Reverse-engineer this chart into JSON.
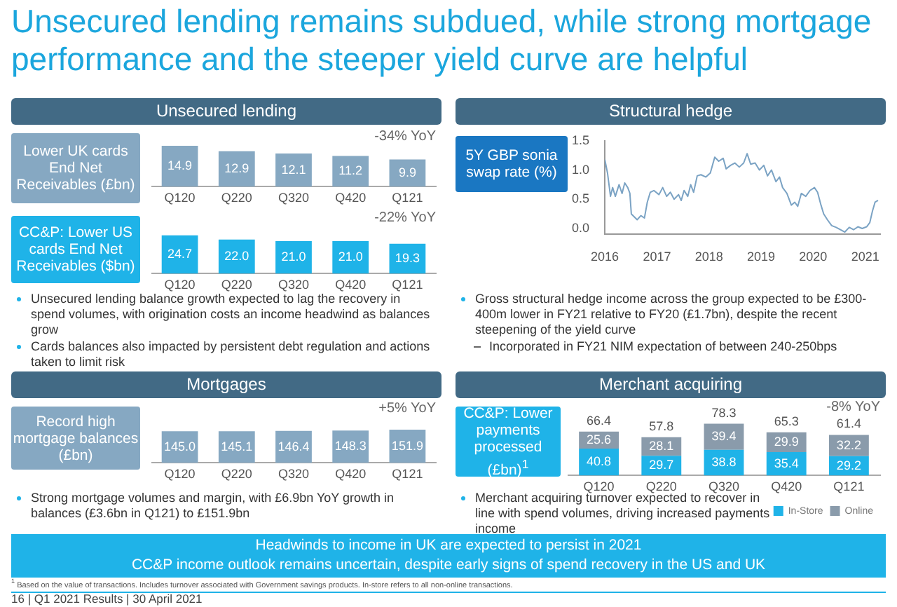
{
  "chart_data": [
    {
      "type": "bar",
      "title": "Unsecured lending",
      "subtitle": "Lower UK cards End Net Receivables (£bn)",
      "categories": [
        "Q120",
        "Q220",
        "Q320",
        "Q420",
        "Q121"
      ],
      "values": [
        14.9,
        12.9,
        12.1,
        11.2,
        9.9
      ],
      "color": "#86a8c2",
      "data_labels": true,
      "tick_labels": "x",
      "annotations": [
        "Unsecured lending remains subdued, while strong mortgage performance and the steeper yield curve are helpful",
        "-34% YoY",
        "Unsecured lending balance growth expected to lag the recovery in spend volumes, with origination costs an income headwind as balances grow",
        "Cards balances also impacted by persistent debt regulation and actions taken to limit risk"
      ]
    },
    {
      "type": "bar",
      "subtitle": "CC&P: Lower US cards End Net Receivables ($bn)",
      "categories": [
        "Q120",
        "Q220",
        "Q320",
        "Q420",
        "Q121"
      ],
      "values": [
        24.7,
        22.0,
        21.0,
        21.0,
        19.3
      ],
      "value_labels": [
        "24.7",
        "22.0",
        "21.0",
        "21.0",
        "19.3"
      ],
      "color": "#1fb3e8",
      "tick_labels": "x",
      "annotations": [
        "-22% YoY"
      ]
    },
    {
      "type": "line",
      "title": "Structural hedge",
      "subtitle": "5Y GBP sonia swap rate (%)",
      "color": "#7ba3c4",
      "x": [
        "2016-01-01",
        "2016-01-20",
        "2016-02-10",
        "2016-02-25",
        "2016-03-15",
        "2016-04-10",
        "2016-05-01",
        "2016-05-20",
        "2016-06-10",
        "2016-06-25",
        "2016-07-05",
        "2016-08-15",
        "2016-09-10",
        "2016-10-05",
        "2016-10-25",
        "2016-11-15",
        "2016-12-10",
        "2017-01-15",
        "2017-02-10",
        "2017-03-10",
        "2017-04-05",
        "2017-05-01",
        "2017-06-01",
        "2017-06-20",
        "2017-07-10",
        "2017-08-05",
        "2017-08-25",
        "2017-09-15",
        "2017-10-10",
        "2017-11-05",
        "2017-12-10",
        "2018-01-10",
        "2018-02-10",
        "2018-03-10",
        "2018-04-10",
        "2018-05-01",
        "2018-06-01",
        "2018-07-01",
        "2018-08-01",
        "2018-09-01",
        "2018-09-25",
        "2018-10-20",
        "2018-11-20",
        "2018-12-20",
        "2019-01-20",
        "2019-02-15",
        "2019-03-15",
        "2019-04-15",
        "2019-05-10",
        "2019-06-01",
        "2019-07-01",
        "2019-08-01",
        "2019-08-25",
        "2019-09-15",
        "2019-10-10",
        "2019-11-10",
        "2019-12-10",
        "2020-01-10",
        "2020-02-01",
        "2020-02-25",
        "2020-03-15",
        "2020-04-10",
        "2020-05-10",
        "2020-06-10",
        "2020-07-10",
        "2020-08-10",
        "2020-09-10",
        "2020-10-10",
        "2020-11-10",
        "2020-12-10",
        "2021-01-10",
        "2021-02-01",
        "2021-02-20",
        "2021-03-10",
        "2021-03-31"
      ],
      "values": [
        1.18,
        0.95,
        0.55,
        0.7,
        0.55,
        0.75,
        0.6,
        0.78,
        0.7,
        0.6,
        0.25,
        0.15,
        0.22,
        0.18,
        0.45,
        0.62,
        0.65,
        0.58,
        0.7,
        0.55,
        0.62,
        0.5,
        0.58,
        0.48,
        0.65,
        0.55,
        0.75,
        0.62,
        0.9,
        0.92,
        0.88,
        0.95,
        1.22,
        1.15,
        1.2,
        1.02,
        1.08,
        1.12,
        1.05,
        1.12,
        1.28,
        1.1,
        1.12,
        1.0,
        1.08,
        0.9,
        1.0,
        0.8,
        0.88,
        0.7,
        0.6,
        0.4,
        0.45,
        0.38,
        0.6,
        0.55,
        0.65,
        0.7,
        0.62,
        0.4,
        0.25,
        0.15,
        0.05,
        0.02,
        -0.02,
        -0.06,
        0.02,
        -0.02,
        0.03,
        0.0,
        0.03,
        0.1,
        0.3,
        0.45,
        0.48
      ],
      "xlim": [
        "2016-01-01",
        "2021-04-15"
      ],
      "xticks": [
        "2016",
        "2017",
        "2018",
        "2019",
        "2020",
        "2021"
      ],
      "ylim": [
        -0.1,
        1.5
      ],
      "yticks": [
        {
          "value": 0,
          "label": "0.0"
        },
        {
          "value": 0.5,
          "label": "0.5"
        },
        {
          "value": 1,
          "label": "1.0"
        },
        {
          "value": 1.5,
          "label": "1.5"
        }
      ],
      "annotations": [
        "Gross structural hedge income across the group expected to be £300-400m lower in FY21 relative to FY20 (£1.7bn), despite the recent steepening of the yield curve",
        "Incorporated in FY21 NIM expectation of between 240-250bps"
      ]
    },
    {
      "type": "bar",
      "title": "Mortgages",
      "subtitle": "Record high mortgage balances (£bn)",
      "categories": [
        "Q120",
        "Q220",
        "Q320",
        "Q420",
        "Q121"
      ],
      "values": [
        145.0,
        145.1,
        146.4,
        148.3,
        151.9
      ],
      "value_labels": [
        "145.0",
        "145.1",
        "146.4",
        "148.3",
        "151.9"
      ],
      "color": "#86a8c2",
      "tick_labels": "x",
      "annotations": [
        "+5% YoY",
        "Strong mortgage volumes and margin, with £6.9bn YoY growth in balances (£3.6bn in Q121) to £151.9bn"
      ]
    },
    {
      "type": "bar",
      "title": "Merchant acquiring",
      "subtitle": "CC&P: Lower payments processed (£bn)$^{1}$",
      "categories": [
        "Q120",
        "Q220",
        "Q320",
        "Q420",
        "Q121"
      ],
      "stacked": true,
      "data_labels": true,
      "tick_labels": "x",
      "legend": "bottom right",
      "series": [
        {
          "name": "In-Store",
          "color": "#1fb3e8",
          "values": [
            40.8,
            29.7,
            38.8,
            35.4,
            29.2
          ]
        },
        {
          "name": "Online",
          "color": "#8a9bab",
          "values": [
            25.6,
            28.1,
            39.4,
            29.9,
            32.2
          ]
        }
      ],
      "totals": [
        "66.4",
        "57.8",
        "78.3",
        "65.3",
        "61.4"
      ],
      "annotations": [
        "-8% YoY",
        "Merchant acquiring turnover expected to recover in line with spend volumes, driving increased payments income",
        "Headwinds to income in UK are expected to persist in 2021",
        "CC&P income outlook remains uncertain, despite early signs of spend recovery in the US and UK",
        "$^{1}$ Based on the value of transactions. Includes turnover associated with Government savings products. In-store refers to all non-online transactions.",
        "16 | Q1 2021 Results | 30 April 2021"
      ]
    }
  ]
}
